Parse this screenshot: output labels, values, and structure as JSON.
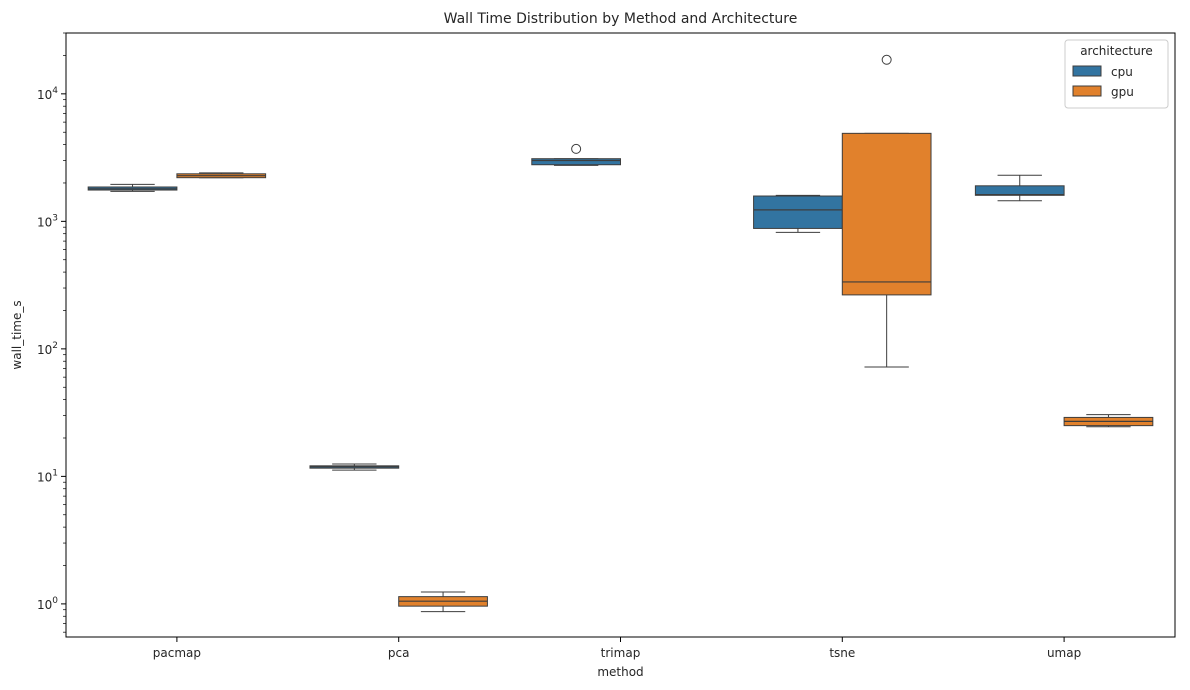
{
  "chart_data": {
    "type": "boxplot",
    "title": "Wall Time Distribution by Method and Architecture",
    "xlabel": "method",
    "ylabel": "wall_time_s",
    "yscale": "log",
    "ylim": [
      0.55,
      30000
    ],
    "yticks": [
      {
        "value": 1,
        "base": "10",
        "exp": "0"
      },
      {
        "value": 10,
        "base": "10",
        "exp": "1"
      },
      {
        "value": 100,
        "base": "10",
        "exp": "2"
      },
      {
        "value": 1000,
        "base": "10",
        "exp": "3"
      },
      {
        "value": 10000,
        "base": "10",
        "exp": "4"
      }
    ],
    "categories": [
      "pacmap",
      "pca",
      "trimap",
      "tsne",
      "umap"
    ],
    "legend": {
      "title": "architecture",
      "position": "top-right"
    },
    "series": [
      {
        "name": "cpu",
        "color": "#3274a1",
        "boxes": [
          {
            "category": "pacmap",
            "whislo": 1720,
            "q1": 1760,
            "med": 1800,
            "q3": 1860,
            "whishi": 1950,
            "fliers": []
          },
          {
            "category": "pca",
            "whislo": 11.2,
            "q1": 11.6,
            "med": 11.9,
            "q3": 12.1,
            "whishi": 12.5,
            "fliers": []
          },
          {
            "category": "trimap",
            "whislo": 2750,
            "q1": 2780,
            "med": 3000,
            "q3": 3100,
            "whishi": 3100,
            "fliers": [
              3700
            ]
          },
          {
            "category": "tsne",
            "whislo": 820,
            "q1": 880,
            "med": 1230,
            "q3": 1580,
            "whishi": 1600,
            "fliers": []
          },
          {
            "category": "umap",
            "whislo": 1450,
            "q1": 1600,
            "med": 1620,
            "q3": 1900,
            "whishi": 2300,
            "fliers": []
          }
        ]
      },
      {
        "name": "gpu",
        "color": "#e1812c",
        "boxes": [
          {
            "category": "pacmap",
            "whislo": 2200,
            "q1": 2200,
            "med": 2280,
            "q3": 2360,
            "whishi": 2400,
            "fliers": []
          },
          {
            "category": "pca",
            "whislo": 0.87,
            "q1": 0.96,
            "med": 1.05,
            "q3": 1.14,
            "whishi": 1.24,
            "fliers": []
          },
          {
            "category": "tsne",
            "whislo": 72,
            "q1": 265,
            "med": 335,
            "q3": 4900,
            "whishi": 4900,
            "fliers": [
              18500
            ]
          },
          {
            "category": "umap",
            "whislo": 24.5,
            "q1": 25,
            "med": 27,
            "q3": 29,
            "whishi": 30.5,
            "fliers": []
          }
        ]
      }
    ]
  }
}
